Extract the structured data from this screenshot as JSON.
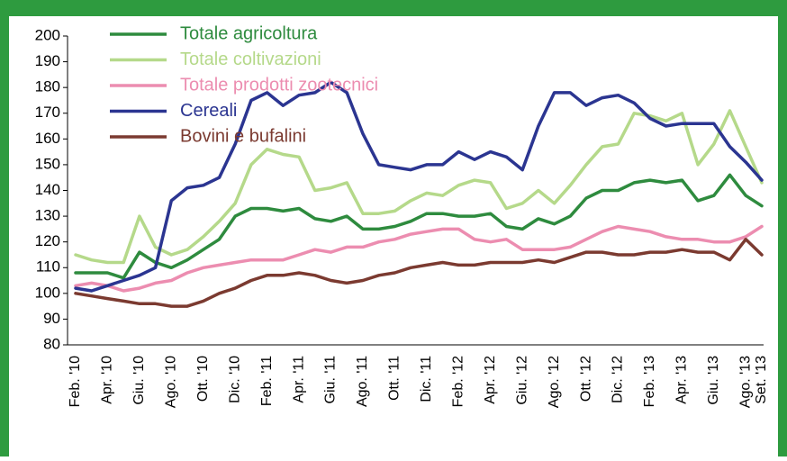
{
  "chart_data": {
    "type": "line",
    "categories": [
      "Feb. '10",
      null,
      "Apr. '10",
      null,
      "Giu. '10",
      null,
      "Ago. '10",
      null,
      "Ott. '10",
      null,
      "Dic. '10",
      null,
      "Feb. '11",
      null,
      "Apr. '11",
      null,
      "Giu. '11",
      null,
      "Ago. '11",
      null,
      "Ott. '11",
      null,
      "Dic. '11",
      null,
      "Feb. '12",
      null,
      "Apr. '12",
      null,
      "Giu. '12",
      null,
      "Ago. '12",
      null,
      "Ott. '12",
      null,
      "Dic. '12",
      null,
      "Feb. '13",
      null,
      "Apr. '13",
      null,
      "Giu. '13",
      null,
      "Ago. '13",
      "Set. '13"
    ],
    "series": [
      {
        "name": "Totale agricoltura",
        "color": "#2e8b3e",
        "values": [
          108,
          108,
          108,
          106,
          116,
          112,
          110,
          113,
          117,
          121,
          130,
          133,
          133,
          132,
          133,
          129,
          128,
          130,
          125,
          125,
          126,
          128,
          131,
          131,
          130,
          130,
          131,
          126,
          125,
          129,
          127,
          130,
          137,
          140,
          140,
          143,
          144,
          143,
          144,
          136,
          138,
          146,
          138,
          134
        ]
      },
      {
        "name": "Totale coltivazioni",
        "color": "#b5d98a",
        "values": [
          115,
          113,
          112,
          112,
          130,
          118,
          115,
          117,
          122,
          128,
          135,
          150,
          156,
          154,
          153,
          140,
          141,
          143,
          131,
          131,
          132,
          136,
          139,
          138,
          142,
          144,
          143,
          133,
          135,
          140,
          135,
          142,
          150,
          157,
          158,
          170,
          169,
          167,
          170,
          150,
          158,
          171,
          157,
          143
        ]
      },
      {
        "name": "Totale prodotti zootecnici",
        "color": "#ec8db0",
        "values": [
          103,
          104,
          103,
          101,
          102,
          104,
          105,
          108,
          110,
          111,
          112,
          113,
          113,
          113,
          115,
          117,
          116,
          118,
          118,
          120,
          121,
          123,
          124,
          125,
          125,
          121,
          120,
          121,
          117,
          117,
          117,
          118,
          121,
          124,
          126,
          125,
          124,
          122,
          121,
          121,
          120,
          120,
          122,
          126
        ]
      },
      {
        "name": "Cereali",
        "color": "#2b3591",
        "values": [
          102,
          101,
          103,
          105,
          107,
          110,
          136,
          141,
          142,
          145,
          158,
          175,
          178,
          173,
          177,
          178,
          182,
          178,
          162,
          150,
          149,
          148,
          150,
          150,
          155,
          152,
          155,
          153,
          148,
          165,
          178,
          178,
          173,
          176,
          177,
          174,
          168,
          165,
          166,
          166,
          166,
          157,
          151,
          144
        ]
      },
      {
        "name": "Bovini e bufalini",
        "color": "#7b3a30",
        "values": [
          100,
          99,
          98,
          97,
          96,
          96,
          95,
          95,
          97,
          100,
          102,
          105,
          107,
          107,
          108,
          107,
          105,
          104,
          105,
          107,
          108,
          110,
          111,
          112,
          111,
          111,
          112,
          112,
          112,
          113,
          112,
          114,
          116,
          116,
          115,
          115,
          116,
          116,
          117,
          116,
          116,
          113,
          121,
          115
        ]
      }
    ],
    "ylim": [
      80,
      200
    ],
    "yticks": [
      80,
      90,
      100,
      110,
      120,
      130,
      140,
      150,
      160,
      170,
      180,
      190,
      200
    ]
  }
}
